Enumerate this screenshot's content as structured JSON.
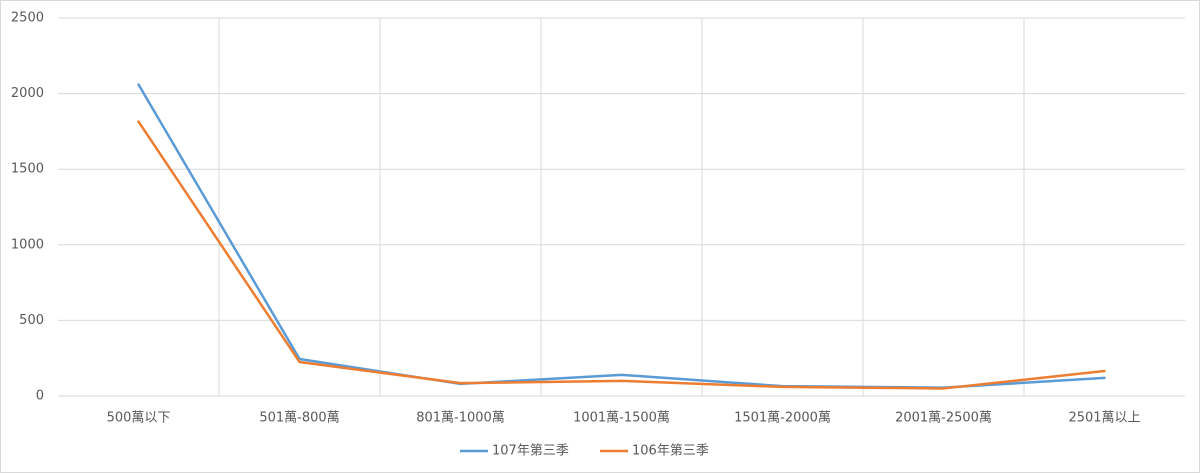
{
  "chart_data": {
    "type": "line",
    "categories": [
      "500萬以下",
      "501萬-800萬",
      "801萬-1000萬",
      "1001萬-1500萬",
      "1501萬-2000萬",
      "2001萬-2500萬",
      "2501萬以上"
    ],
    "series": [
      {
        "name": "107年第三季",
        "color": "#5b9bd5",
        "values": [
          2060,
          245,
          80,
          140,
          65,
          55,
          120
        ]
      },
      {
        "name": "106年第三季",
        "color": "#ed7d31",
        "values": [
          1815,
          225,
          85,
          100,
          60,
          50,
          165
        ]
      }
    ],
    "ylim": [
      0,
      2500
    ],
    "yticks": [
      0,
      500,
      1000,
      1500,
      2000,
      2500
    ],
    "grid": true,
    "legend": "bottom"
  }
}
